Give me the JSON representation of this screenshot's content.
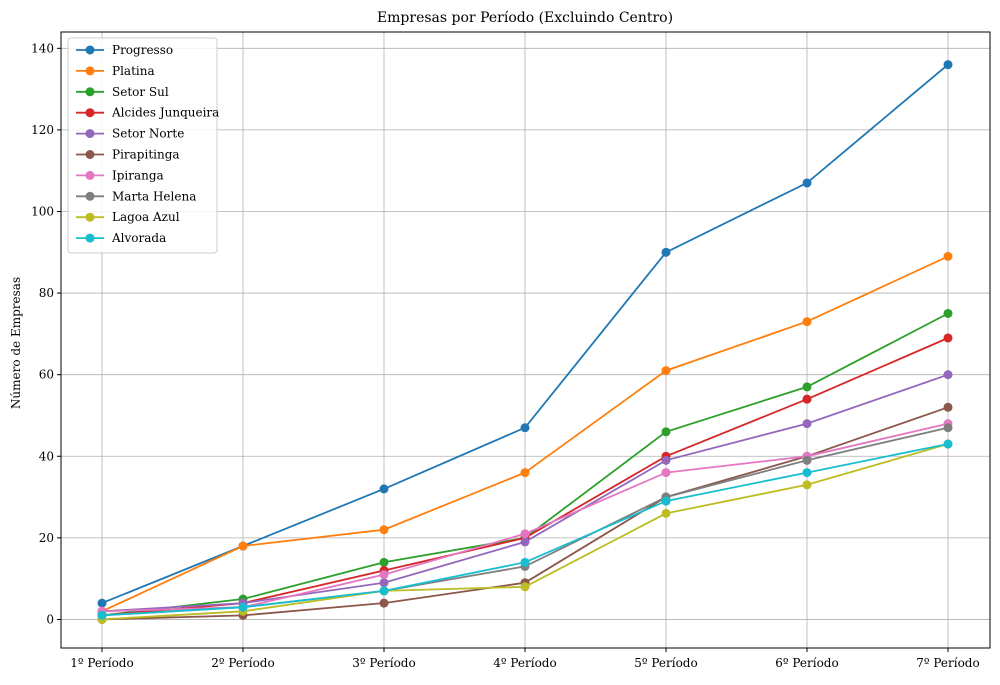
{
  "chart_data": {
    "type": "line",
    "title": "Empresas por Período (Excluindo Centro)",
    "xlabel": "",
    "ylabel": "Número de Empresas",
    "categories": [
      "1º Período",
      "2º Período",
      "3º Período",
      "4º Período",
      "5º Período",
      "6º Período",
      "7º Período"
    ],
    "ylim": [
      -7,
      144
    ],
    "yticks": [
      0,
      20,
      40,
      60,
      80,
      100,
      120,
      140
    ],
    "grid": true,
    "legend_position": "top-left",
    "series": [
      {
        "name": "Progresso",
        "color": "#1f77b4",
        "values": [
          4,
          18,
          32,
          47,
          90,
          107,
          136
        ]
      },
      {
        "name": "Platina",
        "color": "#ff7f0e",
        "values": [
          2,
          18,
          22,
          36,
          61,
          73,
          89
        ]
      },
      {
        "name": "Setor Sul",
        "color": "#2ca02c",
        "values": [
          1,
          5,
          14,
          20,
          46,
          57,
          75
        ]
      },
      {
        "name": "Alcides Junqueira",
        "color": "#d62728",
        "values": [
          1,
          4,
          12,
          20,
          40,
          54,
          69
        ]
      },
      {
        "name": "Setor Norte",
        "color": "#9467bd",
        "values": [
          2,
          4,
          9,
          19,
          39,
          48,
          60
        ]
      },
      {
        "name": "Pirapitinga",
        "color": "#8c564b",
        "values": [
          0,
          1,
          4,
          9,
          30,
          40,
          52
        ]
      },
      {
        "name": "Ipiranga",
        "color": "#e377c2",
        "values": [
          2,
          3,
          11,
          21,
          36,
          40,
          48
        ]
      },
      {
        "name": "Marta Helena",
        "color": "#7f7f7f",
        "values": [
          1,
          3,
          7,
          13,
          30,
          39,
          47
        ]
      },
      {
        "name": "Lagoa Azul",
        "color": "#bcbd22",
        "values": [
          0,
          2,
          7,
          8,
          26,
          33,
          43
        ]
      },
      {
        "name": "Alvorada",
        "color": "#17becf",
        "values": [
          1,
          3,
          7,
          14,
          29,
          36,
          43
        ]
      }
    ]
  }
}
